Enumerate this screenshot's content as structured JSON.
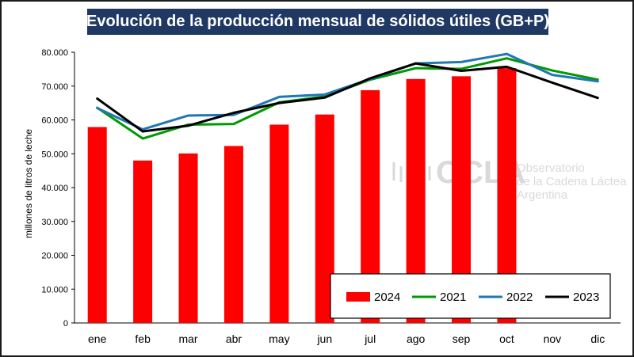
{
  "chart_data": {
    "type": "bar",
    "title": "Evolución de la producción mensual de sólidos útiles (GB+P)",
    "xlabel": "",
    "ylabel": "millones de litros de leche",
    "ylim": [
      0,
      80000
    ],
    "yticks": [
      0,
      10000,
      20000,
      30000,
      40000,
      50000,
      60000,
      70000,
      80000
    ],
    "ytick_labels": [
      "0",
      "10.000",
      "20.000",
      "30.000",
      "40.000",
      "50.000",
      "60.000",
      "70.000",
      "80.000"
    ],
    "categories": [
      "ene",
      "feb",
      "mar",
      "abr",
      "may",
      "jun",
      "jul",
      "ago",
      "sep",
      "oct",
      "nov",
      "dic"
    ],
    "series": [
      {
        "name": "2024",
        "type": "bar",
        "color": "#ff0000",
        "values": [
          57900,
          48000,
          50100,
          52300,
          58600,
          61600,
          68800,
          72100,
          72900,
          75300,
          null,
          null
        ]
      },
      {
        "name": "2021",
        "type": "line",
        "color": "#009900",
        "values": [
          63600,
          54500,
          58600,
          58800,
          65200,
          66900,
          71900,
          75300,
          75100,
          78200,
          74600,
          71900
        ]
      },
      {
        "name": "2022",
        "type": "line",
        "color": "#1f77b4",
        "values": [
          63500,
          57200,
          61300,
          61500,
          66800,
          67500,
          72100,
          76700,
          77100,
          79500,
          73300,
          71400
        ]
      },
      {
        "name": "2023",
        "type": "line",
        "color": "#000000",
        "values": [
          66300,
          56600,
          58300,
          62100,
          65000,
          66600,
          72300,
          76700,
          74500,
          75700,
          71000,
          66500
        ]
      }
    ],
    "legend_position": "bottom-right",
    "grid": false
  },
  "watermark": {
    "brand": "OCLA",
    "line1": "Observatorio",
    "line2": "de la Cadena Láctea",
    "line3": "Argentina"
  }
}
